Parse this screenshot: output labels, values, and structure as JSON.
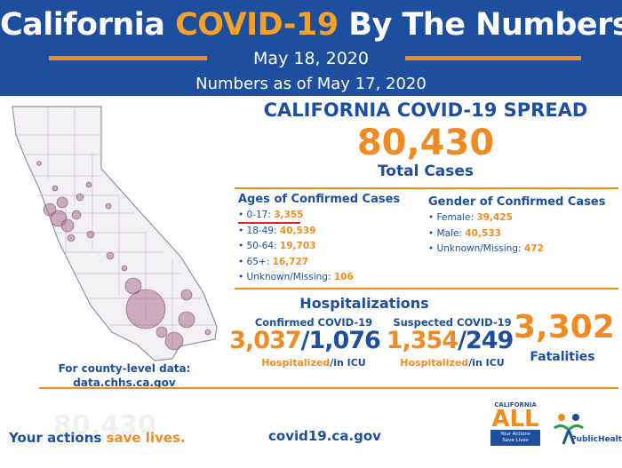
{
  "header": {
    "title_part1": "California ",
    "title_highlight": "COVID-19",
    "title_part2": " By The Numbers",
    "date": "May 18, 2020",
    "as_of": "Numbers as of May 17, 2020"
  },
  "map": {
    "county_note_line1": "For county-level data:",
    "county_note_line2": "data.chhs.ca.gov"
  },
  "spread": {
    "title": "CALIFORNIA COVID-19 SPREAD",
    "total_cases": "80,430",
    "total_label": "Total Cases"
  },
  "ages": {
    "heading": "Ages of Confirmed Cases",
    "items": [
      {
        "label": "0-17: ",
        "value": "3,355"
      },
      {
        "label": "18-49: ",
        "value": "40,539"
      },
      {
        "label": "50-64: ",
        "value": "19,703"
      },
      {
        "label": "65+: ",
        "value": "16,727"
      },
      {
        "label": "Unknown/Missing: ",
        "value": "106"
      }
    ]
  },
  "gender": {
    "heading": "Gender of Confirmed Cases",
    "items": [
      {
        "label": "Female: ",
        "value": "39,425"
      },
      {
        "label": "Male: ",
        "value": "40,533"
      },
      {
        "label": "Unknown/Missing: ",
        "value": "472"
      }
    ]
  },
  "hospitalizations": {
    "title": "Hospitalizations",
    "confirmed": {
      "label": "Confirmed COVID-19",
      "hospitalized": "3,037",
      "icu": "1,076"
    },
    "suspected": {
      "label": "Suspected COVID-19",
      "hospitalized": "1,354",
      "icu": "249"
    },
    "hospitalized_label": "Hospitalized",
    "icu_label": "/in ICU",
    "slash": "/"
  },
  "fatalities": {
    "value": "3,302",
    "label": "Fatalities"
  },
  "footer": {
    "slogan_part1": "Your actions ",
    "slogan_highlight": "save lives.",
    "url": "covid19.ca.gov",
    "ca_all_top": "CALIFORNIA",
    "ca_all_big": "ALL",
    "ca_all_box_line1": "Your Actions",
    "ca_all_box_line2": "Save Lives",
    "cdph_logo_text": "PublicHealth"
  },
  "colors": {
    "brand_blue": "#1d4f9e",
    "accent_orange": "#f08a21",
    "map_bubble": "#b07a9a",
    "highlight_red": "#e02020"
  }
}
